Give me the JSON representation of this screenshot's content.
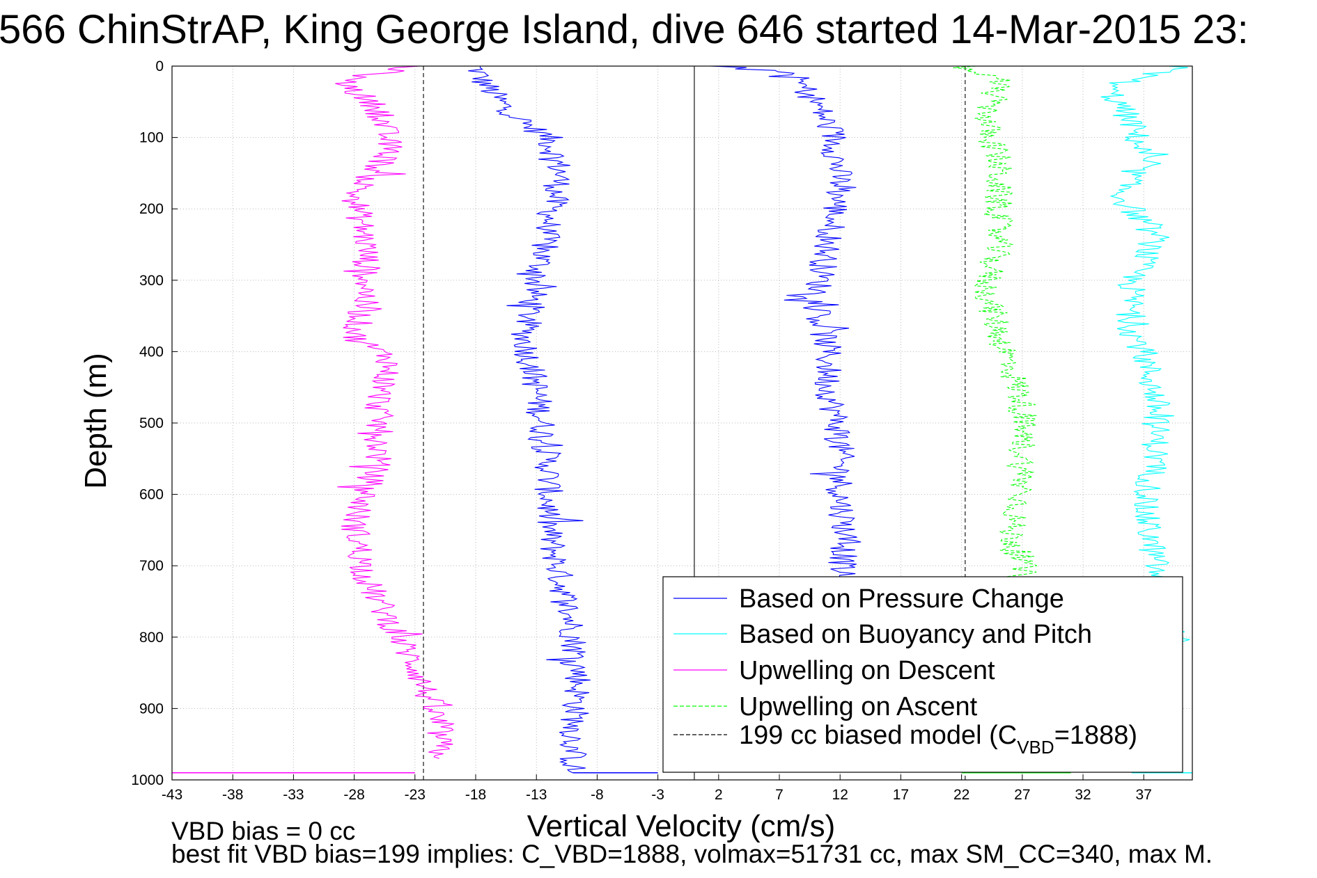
{
  "chart_data": {
    "type": "line",
    "title": "566 ChinStrAP, King George Island, dive 646 started 14-Mar-2015 23:",
    "xlabel": "Vertical Velocity (cm/s)",
    "ylabel": "Depth (m)",
    "xlim": [
      -43,
      41
    ],
    "ylim": [
      0,
      1000
    ],
    "y_reversed": true,
    "grid": true,
    "x_ticks": [
      -43,
      -38,
      -33,
      -28,
      -23,
      -18,
      -13,
      -8,
      -3,
      2,
      7,
      12,
      17,
      22,
      27,
      32,
      37
    ],
    "y_ticks": [
      0,
      100,
      200,
      300,
      400,
      500,
      600,
      700,
      800,
      900,
      1000
    ],
    "legend_position": "bottom-right",
    "legend": [
      {
        "label": "Based on Pressure Change",
        "color": "#0000ff",
        "dash": "solid"
      },
      {
        "label": "Based on Buoyancy and Pitch",
        "color": "#00ffff",
        "dash": "solid"
      },
      {
        "label": "Upwelling on Descent",
        "color": "#ff00ff",
        "dash": "solid"
      },
      {
        "label": "Upwelling on Ascent",
        "color": "#00ff00",
        "dash": "dashed"
      },
      {
        "label_main": "199 cc biased model (C",
        "label_sub": "VBD",
        "label_end": "=1888)",
        "color": "#000000",
        "dash": "dashed"
      }
    ],
    "series": [
      {
        "color": "#0000ff",
        "dash": "solid",
        "x": [
          -18,
          -17.5,
          -16,
          -14,
          -12,
          -11,
          -12,
          -13,
          -14,
          -13,
          -12,
          -12,
          -11,
          -10,
          -9.5,
          -10,
          -10
        ],
        "y": [
          0,
          20,
          50,
          80,
          100,
          150,
          220,
          300,
          380,
          450,
          560,
          650,
          720,
          790,
          860,
          940,
          990
        ]
      },
      {
        "color": "#0000ff",
        "dash": "solid",
        "x": [
          -3,
          0,
          2,
          8,
          10,
          11.5,
          12,
          11,
          10,
          11,
          11,
          12,
          12,
          12.5,
          12
        ],
        "y": [
          0,
          0,
          0,
          10,
          50,
          100,
          170,
          250,
          330,
          400,
          450,
          520,
          600,
          660,
          720
        ]
      },
      {
        "color": "#ff00ff",
        "dash": "solid",
        "x": [
          -23,
          -29,
          -26,
          -25,
          -28,
          -27,
          -27,
          -28,
          -25,
          -26,
          -26,
          -28,
          -27,
          -25,
          -23,
          -22,
          -21,
          -21
        ],
        "y": [
          0,
          20,
          60,
          120,
          180,
          250,
          320,
          380,
          410,
          470,
          550,
          640,
          720,
          780,
          840,
          880,
          930,
          970
        ]
      },
      {
        "color": "#00ffff",
        "dash": "solid",
        "x": [
          40,
          34,
          36,
          37,
          35,
          38,
          36,
          36,
          37,
          38,
          38,
          37,
          38,
          38,
          40
        ],
        "y": [
          0,
          30,
          80,
          130,
          180,
          240,
          300,
          370,
          400,
          470,
          550,
          620,
          700,
          760,
          810
        ]
      },
      {
        "color": "#00ff00",
        "dash": "dashed",
        "x": [
          22,
          25,
          24,
          25,
          25,
          25,
          24,
          25,
          26,
          27,
          27,
          27,
          26,
          27,
          27
        ],
        "y": [
          0,
          20,
          80,
          130,
          190,
          250,
          310,
          370,
          420,
          470,
          540,
          600,
          650,
          700,
          720
        ]
      }
    ],
    "bottom_spikes": [
      {
        "color": "#ff00ff",
        "x": [
          -43,
          -23
        ],
        "y": 990
      },
      {
        "color": "#0000ff",
        "x": [
          -10,
          -3
        ],
        "y": 990
      },
      {
        "color": "#00ff00",
        "x": [
          22,
          31
        ],
        "y": 990
      },
      {
        "color": "#00ffff",
        "x": [
          36,
          41
        ],
        "y": 990
      }
    ],
    "reference_lines": [
      {
        "color": "#000000",
        "dash": "dashed",
        "x": -22.3
      },
      {
        "color": "#000000",
        "dash": "solid",
        "x": 0
      },
      {
        "color": "#000000",
        "dash": "dashed",
        "x": 22.3
      }
    ]
  },
  "notes": {
    "line1": "VBD bias = 0 cc",
    "line2": "best fit VBD bias=199 implies: C_VBD=1888, volmax=51731 cc, max SM_CC=340, max M."
  }
}
